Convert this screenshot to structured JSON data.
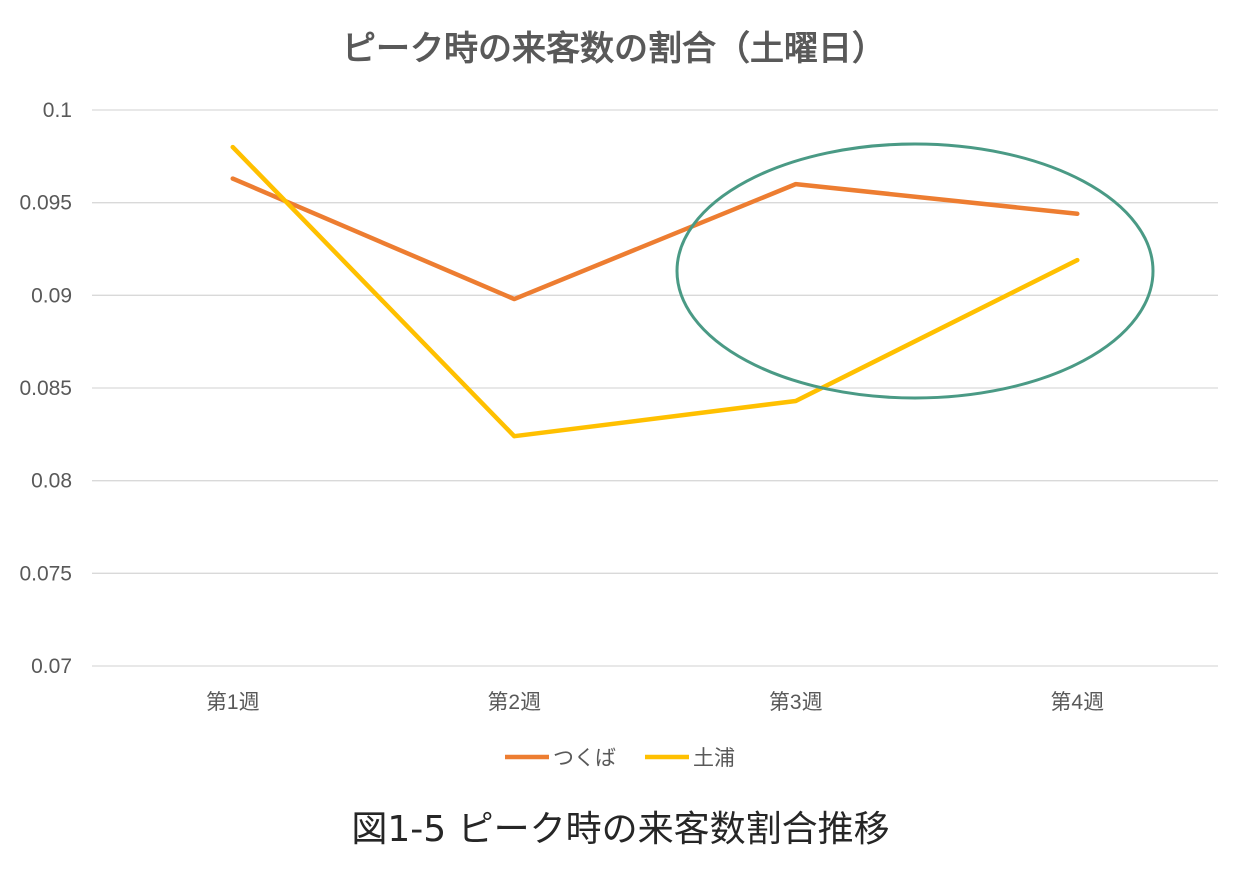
{
  "chart_data": {
    "type": "line",
    "title": "ピーク時の来客数の割合（土曜日）",
    "categories": [
      "第1週",
      "第2週",
      "第3週",
      "第4週"
    ],
    "series": [
      {
        "name": "つくば",
        "color": "#ED7D31",
        "values": [
          0.0963,
          0.0898,
          0.096,
          0.0944
        ]
      },
      {
        "name": "土浦",
        "color": "#FFC000",
        "values": [
          0.098,
          0.0824,
          0.0843,
          0.0919
        ]
      }
    ],
    "ylim": [
      0.07,
      0.1
    ],
    "yticks": [
      "0.07",
      "0.075",
      "0.08",
      "0.085",
      "0.09",
      "0.095",
      "0.1"
    ],
    "grid": true,
    "legend": "bottom",
    "annotation": {
      "shape": "ellipse",
      "color": "#4A9A85",
      "around_categories": [
        "第3週",
        "第4週"
      ]
    }
  },
  "caption": "図1-5 ピーク時の来客数割合推移"
}
